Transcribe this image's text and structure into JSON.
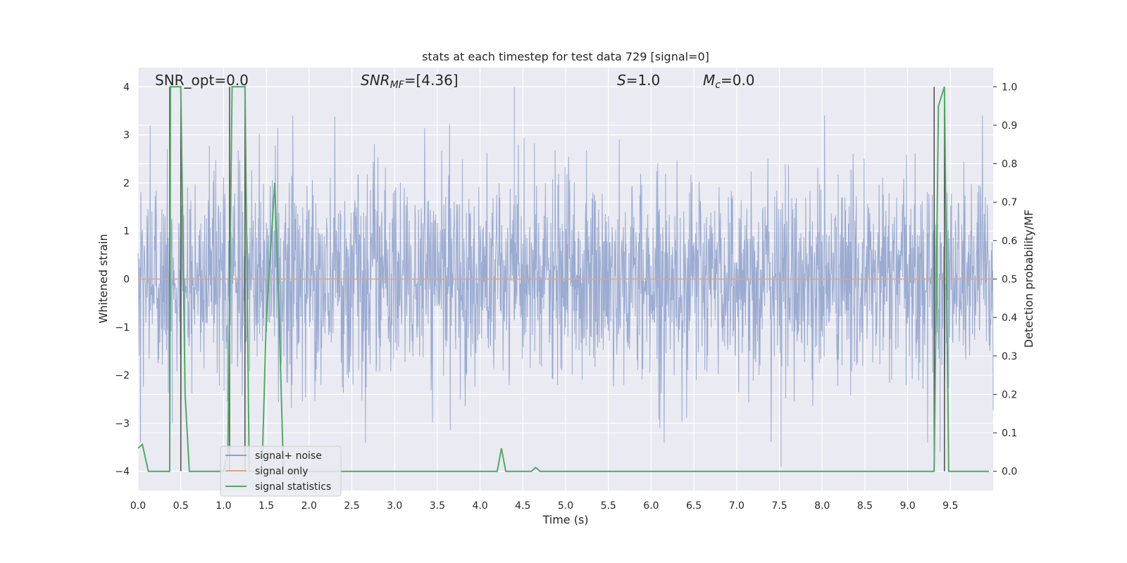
{
  "chart_data": {
    "type": "line",
    "title": "stats at each timestep for test data 729 [signal=0]",
    "xlabel": "Time (s)",
    "ylabel_left": "Whitened strain",
    "ylabel_right": "Detection probability/MF",
    "xlim": [
      0.0,
      10.0
    ],
    "ylim_left": [
      -4.4,
      4.4
    ],
    "ylim_right": [
      -0.05,
      1.05
    ],
    "x_ticks": [
      "0.0",
      "0.5",
      "1.0",
      "1.5",
      "2.0",
      "2.5",
      "3.0",
      "3.5",
      "4.0",
      "4.5",
      "5.0",
      "5.5",
      "6.0",
      "6.5",
      "7.0",
      "7.5",
      "8.0",
      "8.5",
      "9.0",
      "9.5"
    ],
    "y_ticks_left": [
      "4",
      "3",
      "2",
      "1",
      "0",
      "−1",
      "−2",
      "−3",
      "−4"
    ],
    "y_ticks_right": [
      "1.0",
      "0.9",
      "0.8",
      "0.7",
      "0.6",
      "0.5",
      "0.4",
      "0.3",
      "0.2",
      "0.1",
      "0.0"
    ],
    "grid": true,
    "legend_position": "lower-left",
    "annotations": {
      "snr_opt": "SNR_opt=0.0",
      "snr_mf": "SNR",
      "snr_mf_sub": "MF",
      "snr_mf_val": "=[4.36]",
      "s_sym": "S",
      "s_val": "=1.0",
      "mc_sym": "M",
      "mc_sub": "c",
      "mc_val": "=0.0"
    },
    "series": [
      {
        "name": "signal+ noise",
        "color": "#8da0cb",
        "description_axis": "left",
        "amplitude_typical": 1.6,
        "peaks": [
          {
            "x": 4.4,
            "y": 4.0
          },
          {
            "x": 0.4,
            "y": -3.0
          },
          {
            "x": 7.52,
            "y": -3.9
          },
          {
            "x": 9.38,
            "y": -3.6
          }
        ]
      },
      {
        "name": "signal only",
        "color": "#e8a07f",
        "description_axis": "left",
        "x": [
          0.0,
          10.0
        ],
        "y": [
          0.0,
          0.0
        ]
      },
      {
        "name": "signal statistics",
        "color": "#55a868",
        "description_axis": "right",
        "x": [
          0.0,
          0.05,
          0.12,
          0.2,
          0.3,
          0.37,
          0.38,
          0.45,
          0.5,
          0.55,
          0.6,
          0.63,
          1.0,
          1.05,
          1.1,
          1.2,
          1.25,
          1.3,
          1.45,
          1.5,
          1.6,
          1.65,
          1.7,
          2.0,
          4.2,
          4.25,
          4.3,
          4.6,
          4.65,
          4.7,
          9.3,
          9.31,
          9.36,
          9.43,
          9.48,
          9.5,
          9.95
        ],
        "y": [
          0.06,
          0.07,
          0.0,
          0.0,
          0.0,
          0.0,
          1.0,
          1.0,
          1.0,
          0.2,
          0.0,
          0.0,
          0.0,
          0.05,
          1.0,
          1.0,
          1.0,
          0.0,
          0.0,
          0.4,
          0.75,
          0.4,
          0.0,
          0.0,
          0.0,
          0.06,
          0.0,
          0.0,
          0.01,
          0.0,
          0.0,
          0.0,
          0.95,
          1.0,
          0.0,
          0.0,
          0.0
        ]
      }
    ],
    "vertical_markers": {
      "color": "#4c4c4c",
      "x": [
        0.37,
        0.5,
        1.07,
        1.25,
        9.31,
        9.43
      ]
    }
  }
}
